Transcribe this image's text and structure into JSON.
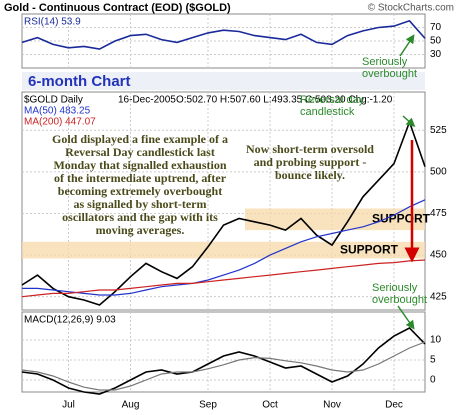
{
  "header": {
    "title": "Gold - Continuous Contract (EOD) ($GOLD)",
    "credit": "© StockCharts.com",
    "subtitle": "6-month Chart"
  },
  "chart_data": [
    {
      "type": "line",
      "series": [
        {
          "name": "RSI(14) 53.9",
          "color": "#1a2a9a",
          "values": [
            48,
            55,
            45,
            40,
            42,
            38,
            50,
            58,
            60,
            52,
            48,
            55,
            62,
            66,
            64,
            58,
            55,
            52,
            60,
            48,
            45,
            58,
            65,
            70,
            72,
            80,
            53.9
          ]
        }
      ],
      "ylim": [
        10,
        90
      ],
      "yticks": [
        70,
        50,
        30
      ],
      "grid": true,
      "annotations": [
        {
          "lines": [
            "Seriously",
            "overbought"
          ]
        }
      ]
    },
    {
      "type": "line",
      "info": [
        "$GOLD Daily",
        "16-Dec-2005",
        "O:502.70 H:507.60 L:493.35 C:503.20 Chg:-1.20"
      ],
      "series": [
        {
          "color": "#000000",
          "values": [
            432,
            438,
            430,
            425,
            423,
            420,
            428,
            437,
            445,
            440,
            436,
            443,
            455,
            468,
            472,
            470,
            468,
            465,
            472,
            462,
            456,
            470,
            485,
            495,
            505,
            530,
            503.2
          ]
        },
        {
          "name": "MA(50) 483.25",
          "color": "#2233cc",
          "values": [
            430,
            430,
            429,
            428,
            427,
            426,
            426,
            427,
            429,
            431,
            432,
            433,
            435,
            438,
            441,
            445,
            450,
            454,
            458,
            461,
            463,
            465,
            467,
            470,
            474,
            479,
            483.25
          ]
        },
        {
          "name": "MA(200) 447.07",
          "color": "#cc2222",
          "values": [
            425,
            426,
            427,
            427,
            428,
            429,
            429,
            430,
            431,
            432,
            433,
            433,
            434,
            435,
            436,
            437,
            438,
            439,
            440,
            441,
            442,
            443,
            444,
            445,
            445.5,
            446.5,
            447.07
          ]
        }
      ],
      "ylim": [
        417,
        548
      ],
      "yticks": [
        525,
        500,
        475,
        450,
        425
      ],
      "grid": true,
      "support_zones": [
        {
          "range": [
            465,
            478
          ],
          "label": "SUPPORT"
        },
        {
          "range": [
            448,
            458
          ],
          "label": "SUPPORT"
        }
      ],
      "annotations": [
        {
          "lines": [
            "Reversal day",
            "candlestick"
          ]
        },
        {
          "lines": [
            "Gold displayed a fine example of a",
            "Reversal Day candlestick last",
            "Monday that signalled exhaustion",
            "of the intermediate uptrend, after",
            "becoming extremely overbought",
            "as signalled by short-term",
            "oscillators and the gap with its",
            "moving averages."
          ]
        },
        {
          "lines": [
            "Now short-term oversold",
            "and probing support -",
            "bounce likely."
          ]
        }
      ]
    },
    {
      "type": "line",
      "categories": [
        null,
        null,
        null,
        "Jul",
        null,
        null,
        null,
        "Aug",
        null,
        null,
        null,
        null,
        "Sep",
        null,
        null,
        null,
        "Oct",
        null,
        null,
        null,
        "Nov",
        null,
        null,
        null,
        "Dec",
        null,
        null
      ],
      "series": [
        {
          "name": "MACD(12,26,9) 9.03",
          "color": "#000000",
          "values": [
            2,
            1.5,
            0,
            -2,
            -3,
            -3.5,
            -2,
            0,
            2,
            2.5,
            1.5,
            2,
            4,
            6,
            7,
            6,
            4.5,
            3,
            3.5,
            1.5,
            -0.5,
            1,
            4,
            8,
            11,
            13,
            9.03
          ]
        },
        {
          "color": "#777777",
          "values": [
            2.5,
            2,
            1,
            -0.5,
            -1.8,
            -2.5,
            -2.5,
            -1.5,
            0,
            1.5,
            2,
            2,
            2.8,
            3.8,
            5,
            5.6,
            5.4,
            4.8,
            4.3,
            3.5,
            2.5,
            2,
            2.5,
            4,
            6,
            8,
            9.5
          ]
        }
      ],
      "ylim": [
        -3,
        17
      ],
      "yticks": [
        10,
        5,
        0
      ],
      "grid": true,
      "annotations": [
        {
          "lines": [
            "Seriously",
            "overbought"
          ]
        }
      ]
    }
  ]
}
